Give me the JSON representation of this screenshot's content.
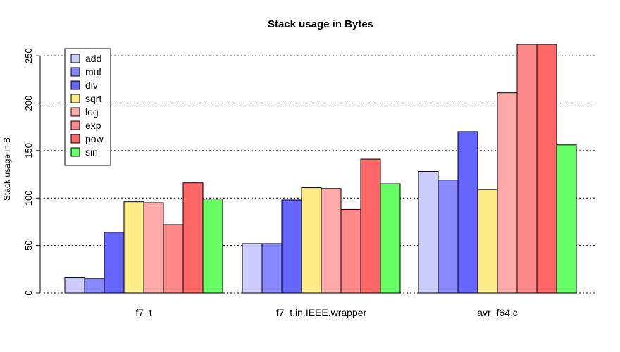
{
  "chart_data": {
    "type": "bar",
    "title": "Stack usage in Bytes",
    "ylabel": "Stack usage in B",
    "xlabel": "",
    "ylim": [
      0,
      262
    ],
    "yticks": [
      0,
      50,
      100,
      150,
      200,
      250
    ],
    "grid": "horizontal dotted",
    "legend_position": "top-left",
    "categories": [
      "f7_t",
      "f7_t.in.IEEE.wrapper",
      "avr_f64.c"
    ],
    "series": [
      {
        "name": "add",
        "color": "#CCCCFF",
        "values": [
          16,
          52,
          128
        ]
      },
      {
        "name": "mul",
        "color": "#8888FF",
        "values": [
          15,
          52,
          119
        ]
      },
      {
        "name": "div",
        "color": "#6666FF",
        "values": [
          64,
          98,
          170
        ]
      },
      {
        "name": "sqrt",
        "color": "#FFEE88",
        "values": [
          96,
          111,
          109
        ]
      },
      {
        "name": "log",
        "color": "#FFAAAA",
        "values": [
          95,
          110,
          211
        ]
      },
      {
        "name": "exp",
        "color": "#FF8888",
        "values": [
          72,
          88,
          262
        ]
      },
      {
        "name": "pow",
        "color": "#FF6666",
        "values": [
          116,
          141,
          262
        ]
      },
      {
        "name": "sin",
        "color": "#66FF66",
        "values": [
          99,
          115,
          156
        ]
      }
    ]
  }
}
